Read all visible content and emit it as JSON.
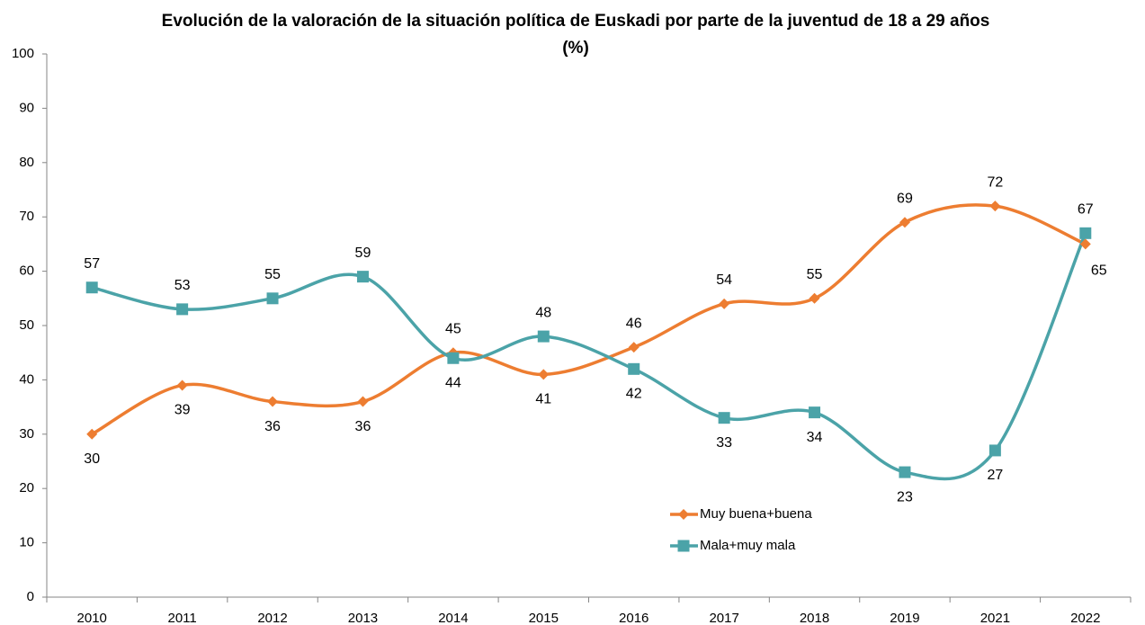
{
  "chart_data": {
    "type": "line",
    "title": "Evolución de la valoración de la situación política de Euskadi por parte de la juventud de 18 a 29 años",
    "subtitle": "(%)",
    "categories": [
      "2010",
      "2011",
      "2012",
      "2013",
      "2014",
      "2015",
      "2016",
      "2017",
      "2018",
      "2019",
      "2021",
      "2022"
    ],
    "series": [
      {
        "name": "Muy buena+buena",
        "color": "#ED7D31",
        "marker": "diamond",
        "values": [
          30,
          39,
          36,
          36,
          45,
          41,
          46,
          54,
          55,
          69,
          72,
          65
        ]
      },
      {
        "name": "Mala+muy mala",
        "color": "#4BA3A8",
        "marker": "square",
        "values": [
          57,
          53,
          55,
          59,
          44,
          48,
          42,
          33,
          34,
          23,
          27,
          67
        ]
      }
    ],
    "ylim": [
      0,
      100
    ],
    "yticks": [
      0,
      10,
      20,
      30,
      40,
      50,
      60,
      70,
      80,
      90,
      100
    ],
    "smooth": true,
    "data_labels": true,
    "grid": false
  }
}
